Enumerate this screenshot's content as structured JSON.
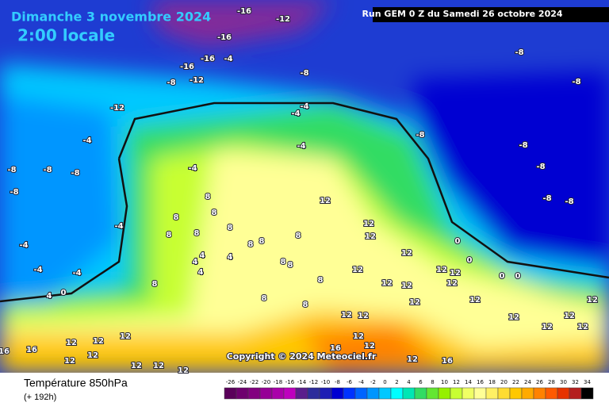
{
  "header": {
    "date": "Dimanche 3 novembre 2024",
    "time": "2:00 locale",
    "run": "Run GEM 0 Z du Samedi 26 octobre 2024"
  },
  "copyright": "Copyright © 2024 Meteociel.fr",
  "footer": {
    "title": "Température 850hPa",
    "lead": "(+ 192h)"
  },
  "colorbar": {
    "ticks": [
      -26,
      -24,
      -22,
      -20,
      -18,
      -16,
      -14,
      -12,
      -10,
      -8,
      -6,
      -4,
      -2,
      0,
      2,
      4,
      6,
      8,
      10,
      12,
      14,
      16,
      18,
      20,
      22,
      24,
      26,
      28,
      30,
      32,
      34
    ],
    "colors": [
      "#5a005a",
      "#6e006e",
      "#82007f",
      "#960096",
      "#aa00aa",
      "#be00be",
      "#5a1e8c",
      "#2d2d9b",
      "#1e1eb4",
      "#0000d2",
      "#0032ff",
      "#0064ff",
      "#0096ff",
      "#00c8ff",
      "#00ffff",
      "#00e6b4",
      "#32dc64",
      "#64e632",
      "#96f000",
      "#c8ff32",
      "#f0ff64",
      "#ffff96",
      "#fff064",
      "#ffdc32",
      "#ffc800",
      "#ffaa00",
      "#ff8200",
      "#ff5a00",
      "#e63200",
      "#b41e1e",
      "#000000"
    ]
  },
  "map_labels": [
    -16,
    -12,
    -16,
    -16,
    -4,
    -16,
    -12,
    -8,
    -8,
    -8,
    -8,
    -12,
    -4,
    -4,
    -4,
    -4,
    -8,
    -8,
    -8,
    -8,
    -4,
    -8,
    -8,
    -8,
    -8,
    -8,
    -4,
    -4,
    -4,
    -4,
    0,
    4,
    8,
    8,
    8,
    8,
    8,
    8,
    8,
    8,
    8,
    4,
    4,
    4,
    4,
    8,
    8,
    8,
    8,
    8,
    8,
    12,
    12,
    12,
    12,
    12,
    12,
    12,
    12,
    12,
    12,
    12,
    12,
    12,
    12,
    12,
    12,
    12,
    12,
    12,
    12,
    12,
    12,
    12,
    12,
    12,
    16,
    16,
    16,
    16,
    0,
    0,
    0,
    0,
    12,
    12,
    12,
    12,
    12
  ]
}
